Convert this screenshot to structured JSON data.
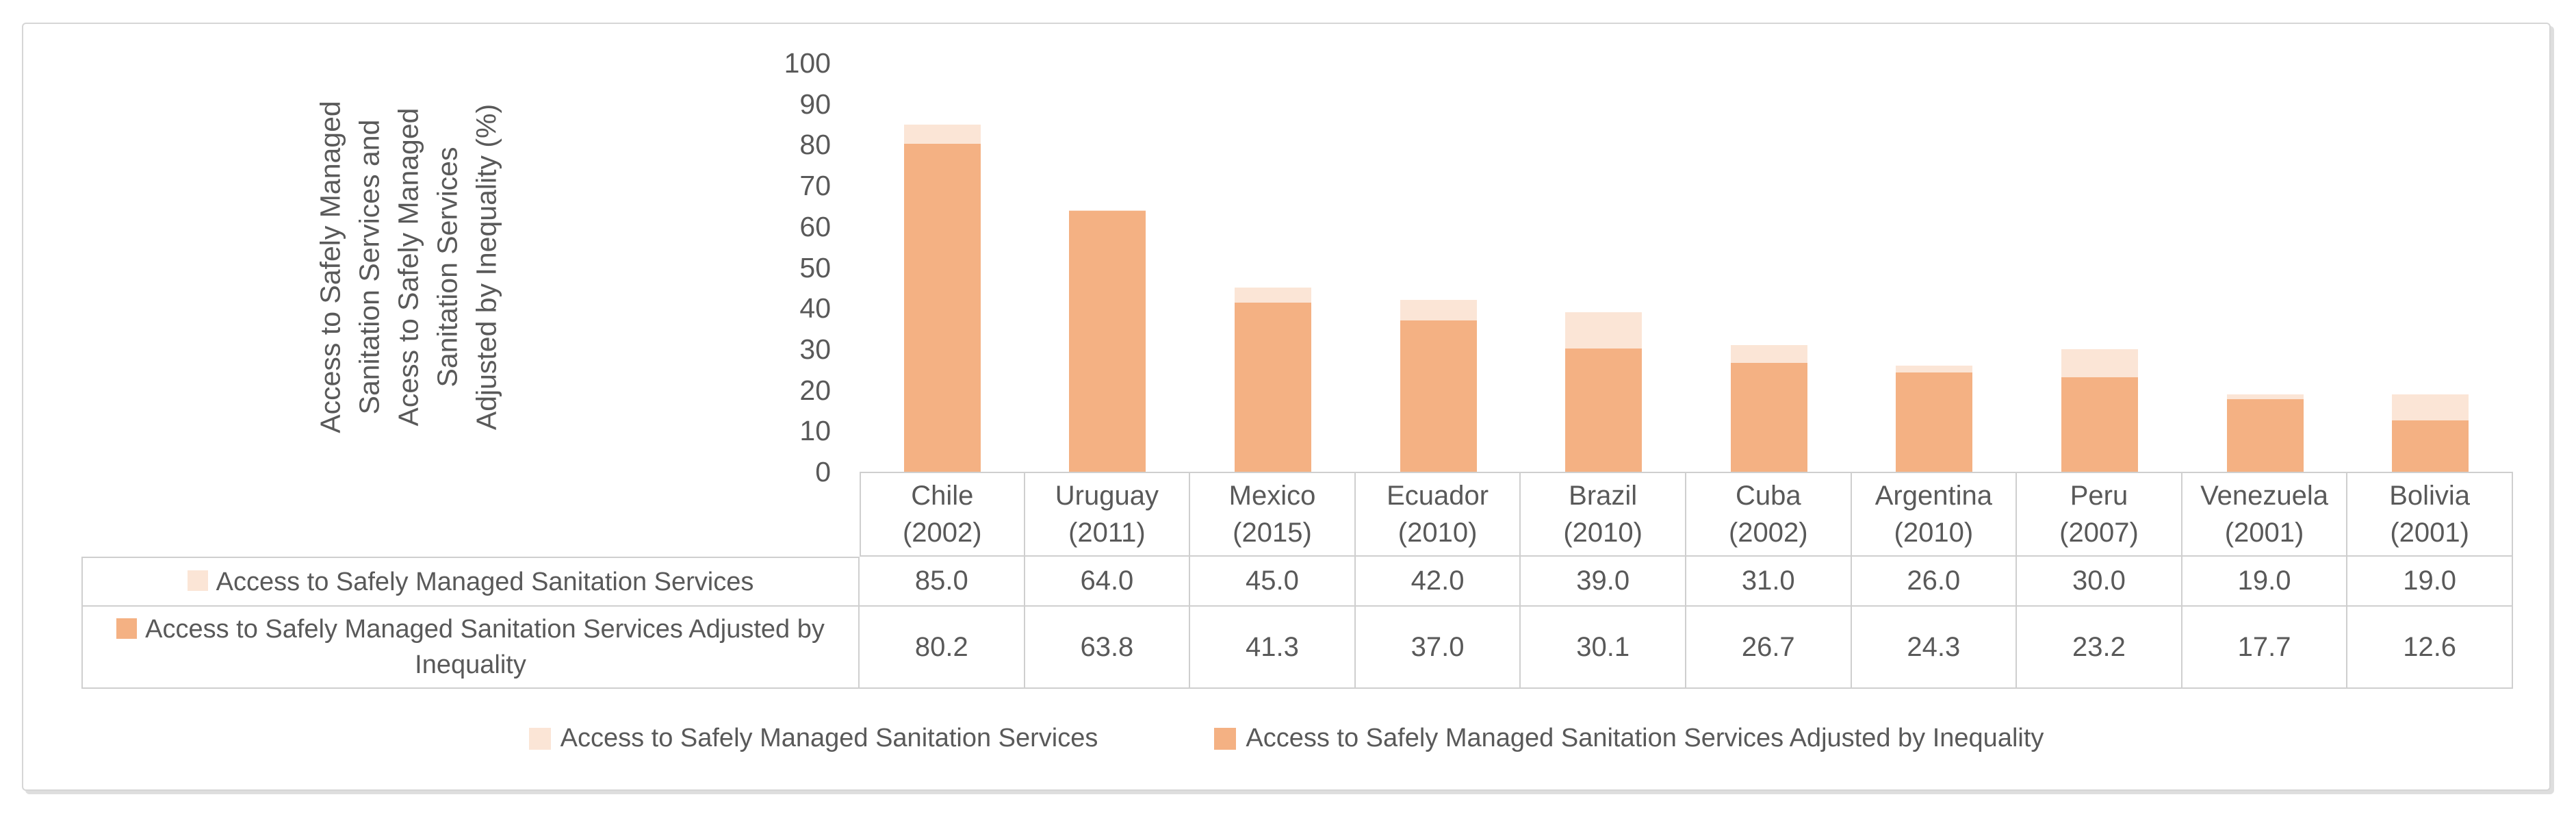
{
  "chart_data": {
    "type": "bar",
    "title": "",
    "ylabel_lines": [
      "Access to Safely Managed",
      "Sanitation Services and",
      "Acess to Safely Managed",
      "Sanitation Services",
      "Adjusted by Inequality (%)"
    ],
    "ylim": [
      0,
      100
    ],
    "yticks": [
      0,
      10,
      20,
      30,
      40,
      50,
      60,
      70,
      80,
      90,
      100
    ],
    "grid": false,
    "legend_position": "bottom",
    "value_decimals": 1,
    "categories": [
      "Chile",
      "Uruguay",
      "Mexico",
      "Ecuador",
      "Brazil",
      "Cuba",
      "Argentina",
      "Peru",
      "Venezuela",
      "Bolivia"
    ],
    "category_years": [
      "(2002)",
      "(2011)",
      "(2015)",
      "(2010)",
      "(2010)",
      "(2002)",
      "(2010)",
      "(2007)",
      "(2001)",
      "(2001)"
    ],
    "series": [
      {
        "name": "Access to Safely Managed Sanitation Services",
        "color": "#FBE5D6",
        "values": [
          85.0,
          64.0,
          45.0,
          42.0,
          39.0,
          31.0,
          26.0,
          30.0,
          19.0,
          19.0
        ]
      },
      {
        "name": "Access to Safely Managed Sanitation Services Adjusted by Inequality",
        "color": "#F4B183",
        "values": [
          80.2,
          63.8,
          41.3,
          37.0,
          30.1,
          26.7,
          24.3,
          23.2,
          17.7,
          12.6
        ]
      }
    ]
  },
  "colors": {
    "text": "#595959",
    "table_border": "#cfcfcf",
    "frame_border": "#d6d6d6",
    "series_services": "#FBE5D6",
    "series_adjusted": "#F4B183"
  }
}
